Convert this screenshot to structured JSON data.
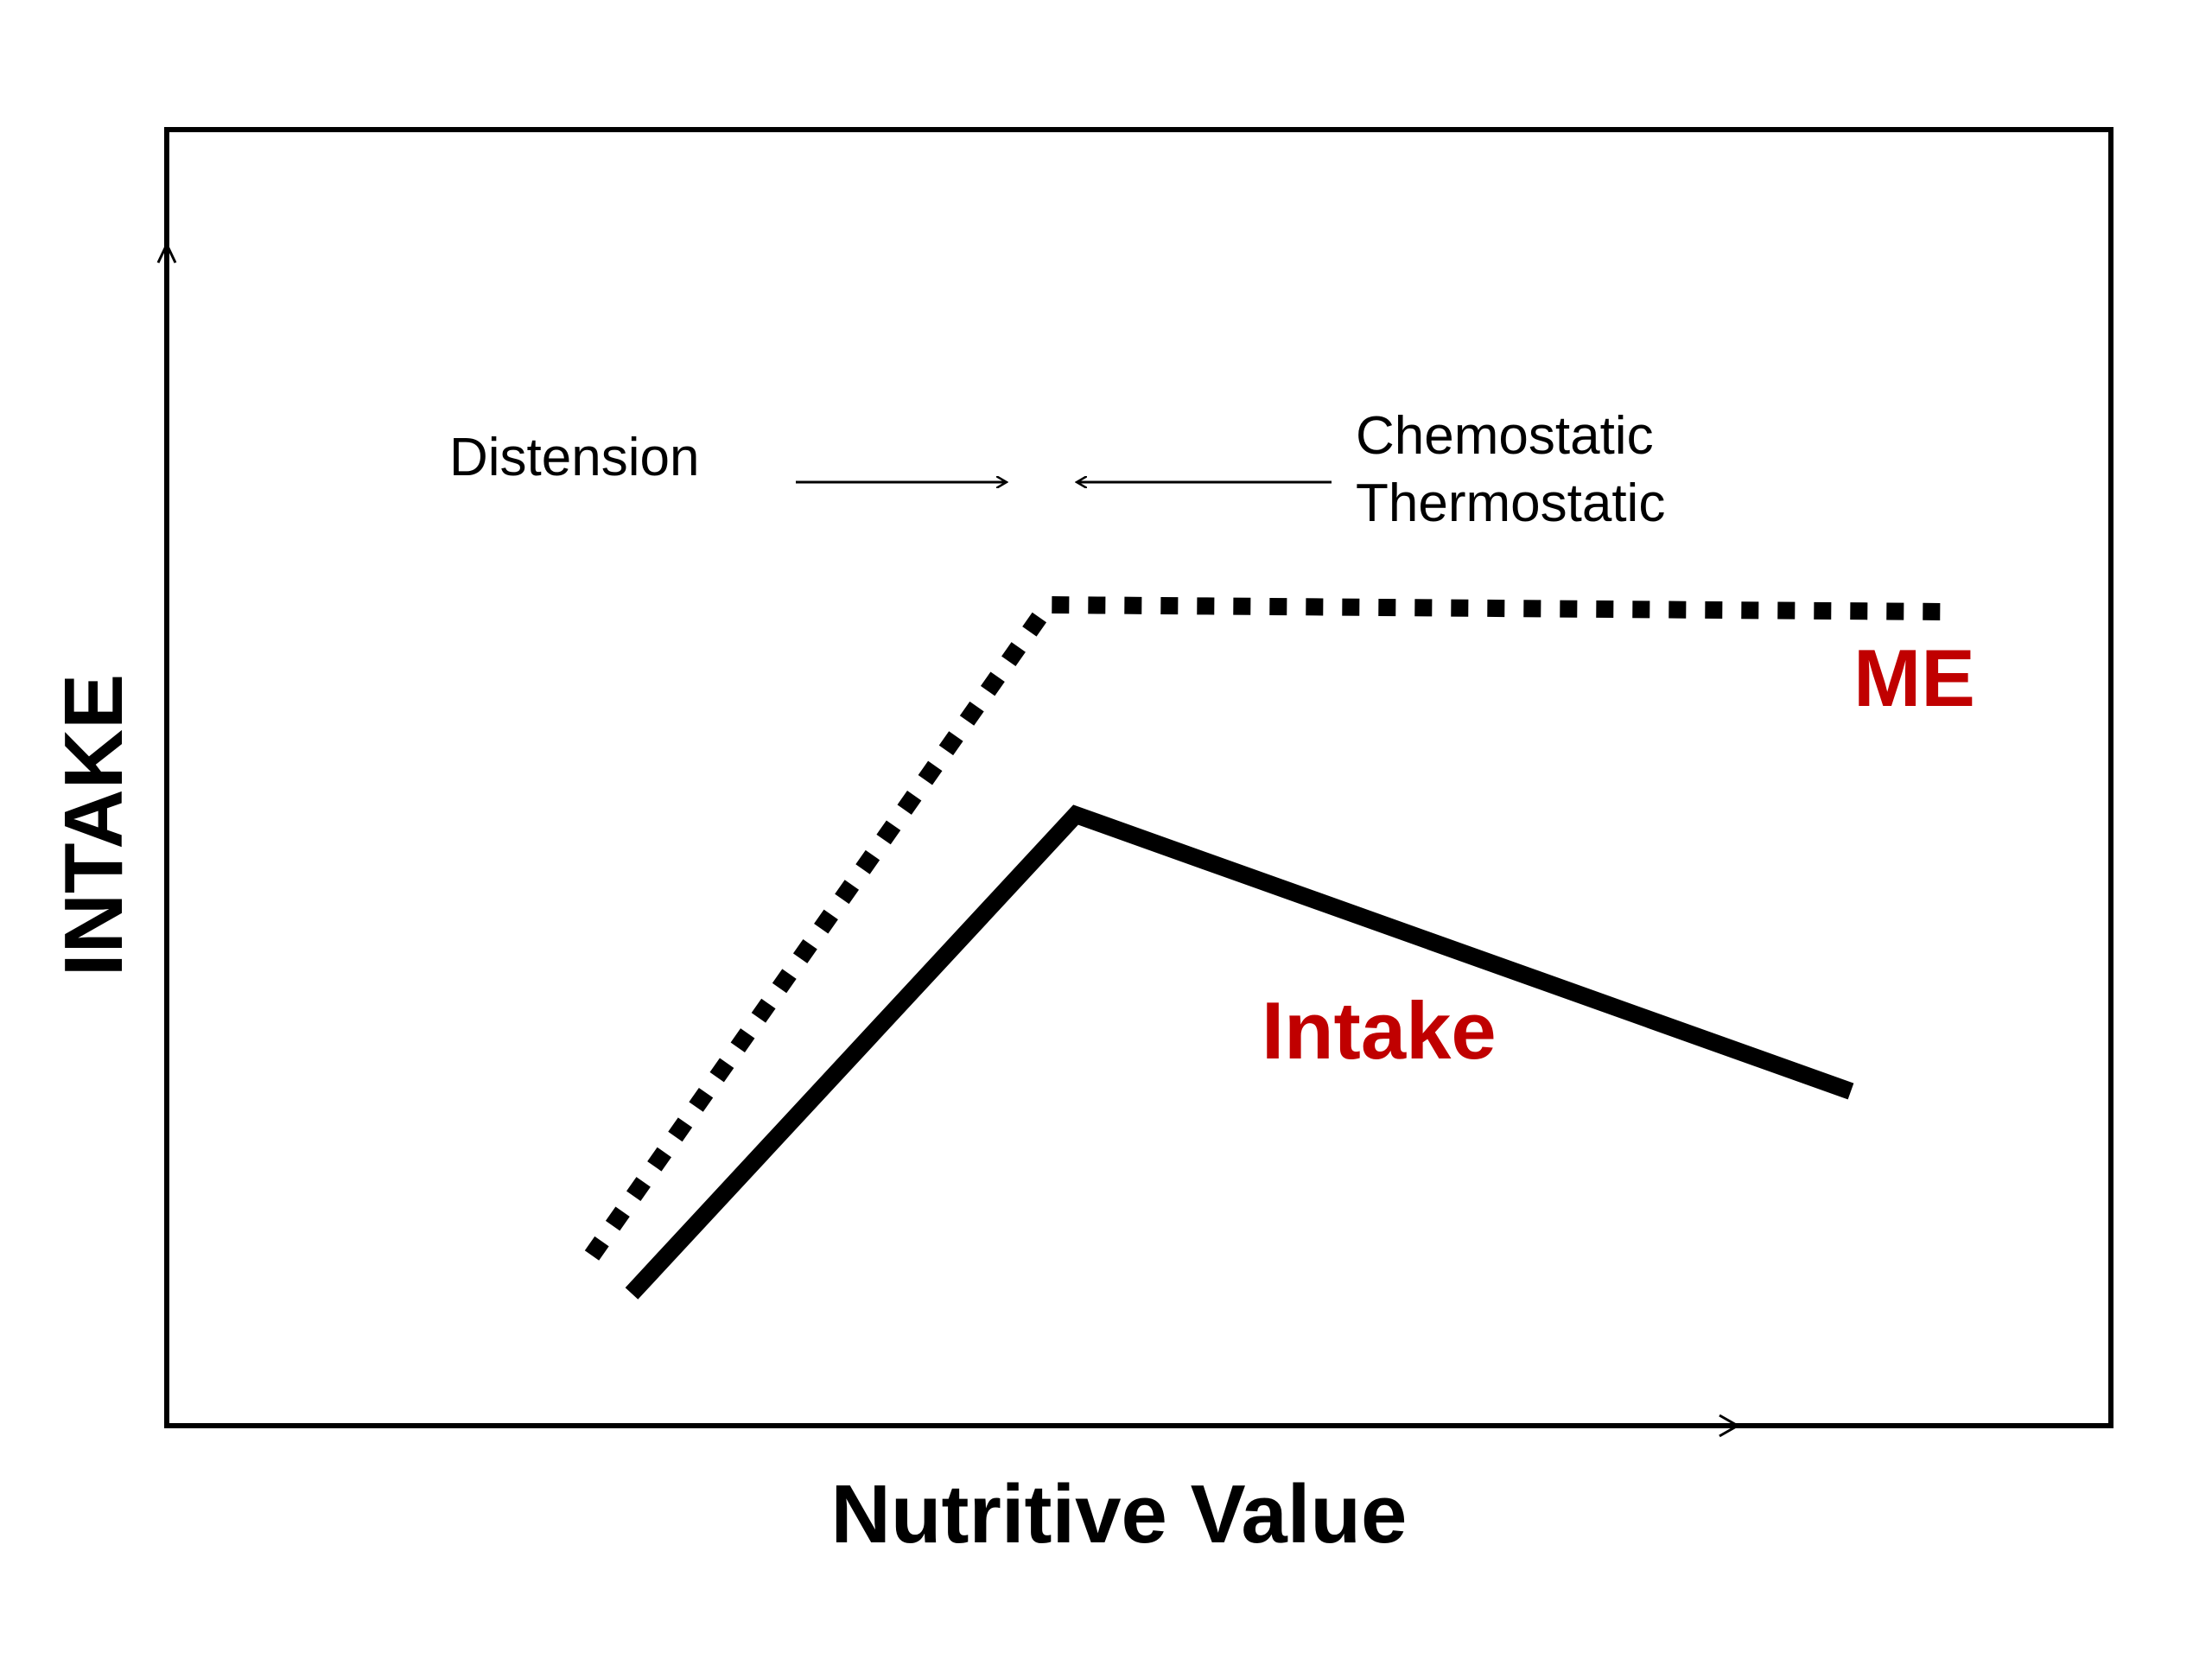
{
  "x_axis_label": "Nutritive Value",
  "y_axis_label": "INTAKE",
  "annotations": {
    "left": "Distension",
    "right_line1": "Chemostatic",
    "right_line2": "Thermostatic"
  },
  "series": {
    "me": {
      "label": "ME",
      "color": "#c00000",
      "line_style": "dotted"
    },
    "intake": {
      "label": "Intake",
      "color": "#c00000",
      "line_style": "solid"
    }
  },
  "colors": {
    "line": "#000000",
    "frame": "#000000"
  }
}
